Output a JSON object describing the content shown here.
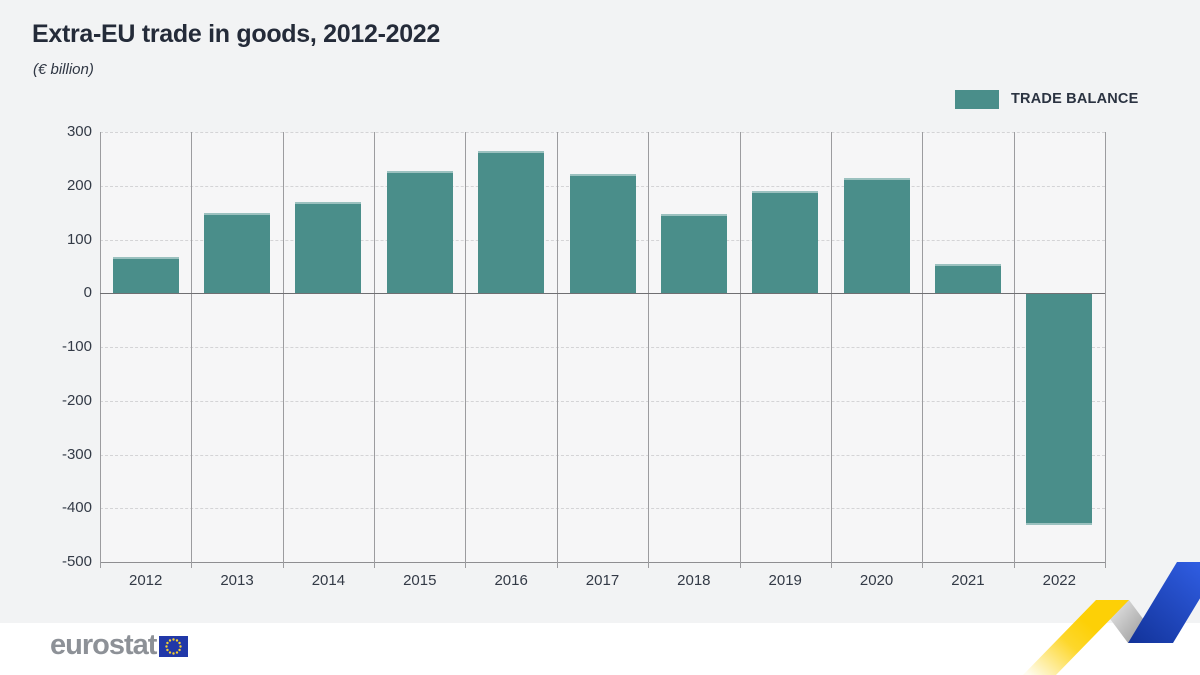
{
  "header": {
    "title": "Extra-EU trade in goods, 2012-2022",
    "subtitle": "(€ billion)"
  },
  "legend": {
    "items": [
      {
        "label": "TRADE BALANCE",
        "color": "#4a8e8a"
      }
    ]
  },
  "chart_data": {
    "type": "bar",
    "title": "Extra-EU trade in goods, 2012-2022",
    "unit": "(€ billion)",
    "categories": [
      "2012",
      "2013",
      "2014",
      "2015",
      "2016",
      "2017",
      "2018",
      "2019",
      "2020",
      "2021",
      "2022"
    ],
    "series": [
      {
        "name": "TRADE BALANCE",
        "color": "#4a8e8a",
        "values": [
          68,
          150,
          170,
          228,
          264,
          222,
          148,
          190,
          215,
          55,
          -430
        ]
      }
    ],
    "ylim": [
      -500,
      300
    ],
    "ytick_step": 100,
    "grid": "horizontal-dashed",
    "legend_position": "top-right"
  },
  "footer": {
    "brand": "eurostat",
    "flag_icon": "eu-flag-icon"
  },
  "colors": {
    "background": "#f2f3f4",
    "plot_background": "#f6f6f7",
    "bar": "#4a8e8a",
    "grid_dashed": "#d4d4d6",
    "axis_gray": "#9c9c9f",
    "zero_line": "#6f6f72",
    "text_dark": "#242b39",
    "footer_background": "#ffffff",
    "brand_gray": "#8d9197",
    "flag_blue": "#2138a8",
    "flag_stars_yellow": "#f8d12e",
    "ribbon_yellow": "#fdd006",
    "ribbon_blue_dark": "#12339a",
    "ribbon_blue_bright": "#2f5ce0",
    "ribbon_gray_light": "#ececec",
    "ribbon_gray_dark": "#8f8f8f"
  }
}
